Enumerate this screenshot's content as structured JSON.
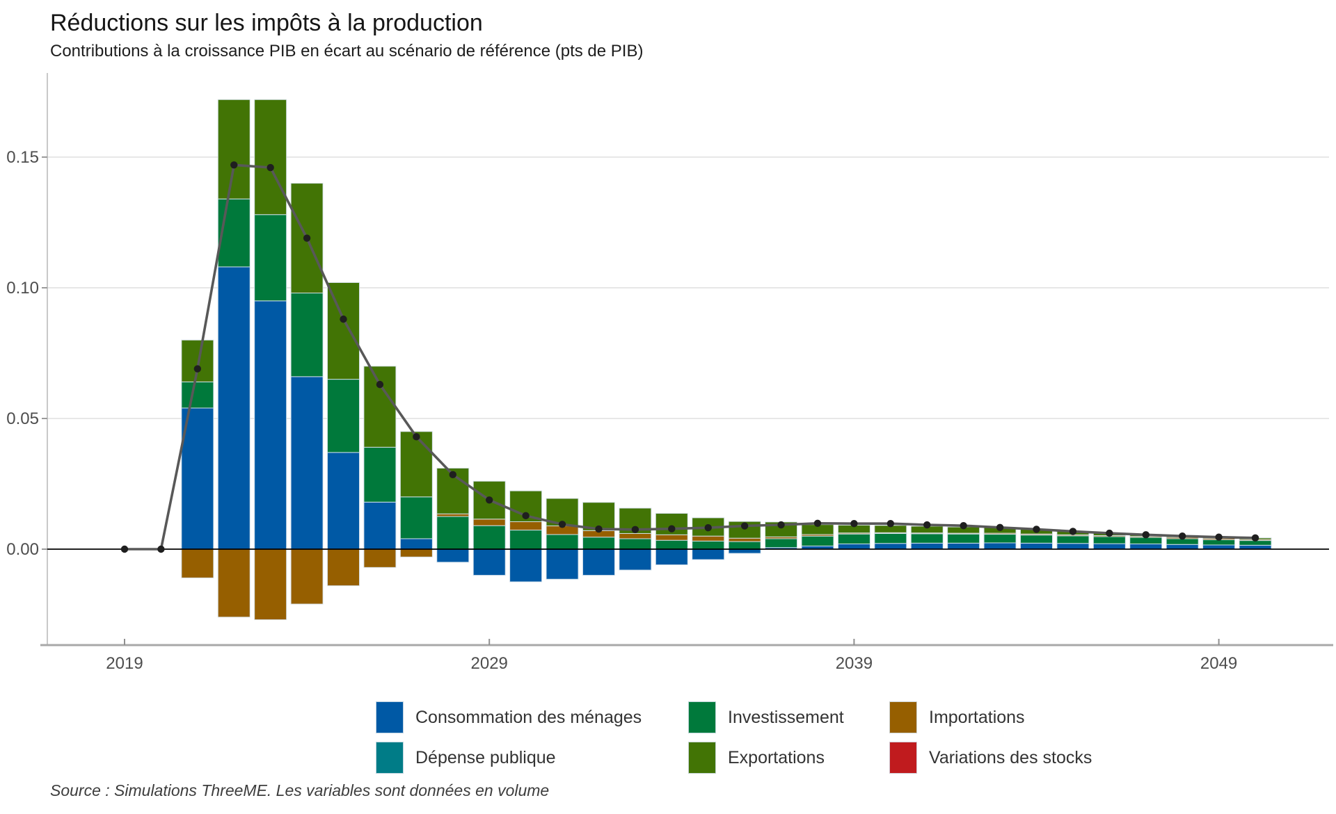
{
  "header": {
    "title": "Réductions sur les impôts à la production",
    "subtitle": "Contributions à la croissance PIB en écart au scénario de référence (pts de PIB)"
  },
  "footer": {
    "source": "Source : Simulations ThreeME. Les variables sont données en volume"
  },
  "colors": {
    "consommation": "#0059A5",
    "depense_publique": "#007C87",
    "investissement": "#00793B",
    "exportations": "#427405",
    "importations": "#965F00",
    "stocks": "#C01B1E",
    "pib_line": "#585858",
    "pib_dot": "#1f1f1f",
    "gridline": "#e7e7e7",
    "zero_line": "#000000",
    "axis_spine": "#a8a8a8",
    "tick_label": "#4d4d4d"
  },
  "legend": {
    "columns": [
      [
        {
          "label": "Consommation des ménages",
          "color": "#0059A5"
        },
        {
          "label": "Dépense publique",
          "color": "#007C87"
        }
      ],
      [
        {
          "label": "Investissement",
          "color": "#00793B"
        },
        {
          "label": "Exportations",
          "color": "#427405"
        }
      ],
      [
        {
          "label": "Importations",
          "color": "#965F00"
        },
        {
          "label": "Variations des stocks",
          "color": "#C01B1E"
        }
      ]
    ]
  },
  "chart_data": {
    "type": "bar",
    "subtype": "stacked-bars-with-line",
    "title": "Réductions sur les impôts à la production",
    "xlabel": "",
    "ylabel": "pts de PIB",
    "grid": true,
    "axes": {
      "y_ticks": [
        0.0,
        0.05,
        0.1,
        0.15
      ],
      "y_tick_labels": [
        "0.00",
        "0.05",
        "0.10",
        "0.15"
      ],
      "x_ticks": [
        2019,
        2029,
        2039,
        2049
      ],
      "ylim": [
        -0.035,
        0.182
      ],
      "xlim": [
        2019,
        2050
      ]
    },
    "years": [
      2019,
      2020,
      2021,
      2022,
      2023,
      2024,
      2025,
      2026,
      2027,
      2028,
      2029,
      2030,
      2031,
      2032,
      2033,
      2034,
      2035,
      2036,
      2037,
      2038,
      2039,
      2040,
      2041,
      2042,
      2043,
      2044,
      2045,
      2046,
      2047,
      2048,
      2049,
      2050
    ],
    "series": [
      {
        "name": "Consommation des ménages",
        "color": "#0059A5",
        "values": [
          0,
          0,
          0.054,
          0.108,
          0.095,
          0.066,
          0.037,
          0.018,
          0.004,
          -0.005,
          -0.01,
          -0.0125,
          -0.0115,
          -0.01,
          -0.008,
          -0.006,
          -0.004,
          -0.0016,
          0.0006,
          0.0012,
          0.002,
          0.0022,
          0.0023,
          0.0023,
          0.0024,
          0.0023,
          0.0022,
          0.0021,
          0.002,
          0.0018,
          0.0016,
          0.0015
        ]
      },
      {
        "name": "Dépense publique",
        "color": "#007C87",
        "values": [
          0,
          0,
          0,
          0,
          0,
          0,
          0,
          0,
          0,
          0,
          0,
          0,
          0,
          0,
          0,
          0,
          0,
          0,
          0,
          0,
          0,
          0,
          0,
          0,
          0,
          0,
          0,
          0,
          0,
          0,
          0,
          0
        ]
      },
      {
        "name": "Investissement",
        "color": "#00793B",
        "values": [
          0,
          0,
          0.01,
          0.026,
          0.033,
          0.032,
          0.028,
          0.021,
          0.016,
          0.0125,
          0.009,
          0.0073,
          0.0056,
          0.0046,
          0.004,
          0.0034,
          0.0031,
          0.0029,
          0.0034,
          0.0038,
          0.0038,
          0.0038,
          0.0036,
          0.0035,
          0.0033,
          0.0031,
          0.0029,
          0.0027,
          0.0025,
          0.0022,
          0.002,
          0.0018
        ]
      },
      {
        "name": "Importations",
        "color": "#965F00",
        "values": [
          0,
          0,
          -0.011,
          -0.026,
          -0.027,
          -0.021,
          -0.014,
          -0.007,
          -0.003,
          0.001,
          0.0025,
          0.0032,
          0.0033,
          0.0025,
          0.002,
          0.0021,
          0.0019,
          0.0013,
          0.0007,
          0.0006,
          0.0004,
          0.0003,
          0.0003,
          0.0003,
          0.0004,
          0.0004,
          0.0004,
          0.0004,
          0.0004,
          0.0005,
          0.0005,
          0.0004
        ]
      },
      {
        "name": "Exportations",
        "color": "#427405",
        "values": [
          0,
          0,
          0.016,
          0.038,
          0.044,
          0.042,
          0.037,
          0.031,
          0.025,
          0.0175,
          0.0145,
          0.0118,
          0.0105,
          0.0108,
          0.0097,
          0.0082,
          0.007,
          0.0064,
          0.0057,
          0.0038,
          0.003,
          0.0028,
          0.0026,
          0.0024,
          0.0022,
          0.0018,
          0.0013,
          0.001,
          0.0008,
          0.0008,
          0.0007,
          0.0006
        ]
      },
      {
        "name": "Variations des stocks",
        "color": "#C01B1E",
        "values": [
          0,
          0,
          0,
          0,
          0,
          0,
          0,
          0,
          0,
          0,
          0,
          0,
          0,
          0,
          0,
          0,
          0,
          0,
          0,
          0,
          0,
          0,
          0,
          0,
          0,
          0,
          0,
          0,
          0,
          0,
          0,
          0
        ]
      }
    ],
    "line": {
      "name": "PIB",
      "color": "#585858",
      "values": [
        0,
        0,
        0.069,
        0.147,
        0.146,
        0.119,
        0.088,
        0.063,
        0.043,
        0.0285,
        0.0188,
        0.0128,
        0.0095,
        0.0077,
        0.0075,
        0.0078,
        0.0082,
        0.0089,
        0.0093,
        0.0099,
        0.0098,
        0.0098,
        0.0093,
        0.009,
        0.0083,
        0.0076,
        0.0068,
        0.0061,
        0.0055,
        0.005,
        0.0046,
        0.0043
      ]
    }
  }
}
